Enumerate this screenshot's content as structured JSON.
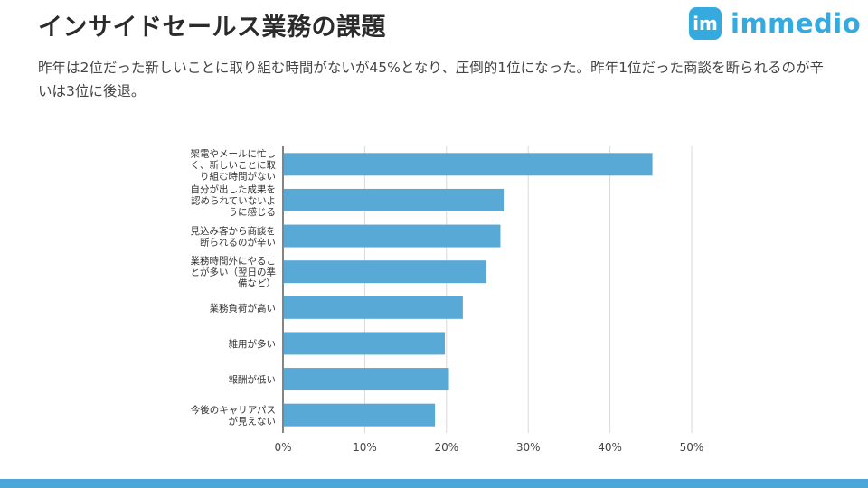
{
  "header": {
    "title": "インサイドセールス業務の課題",
    "subtitle": "昨年は2位だった新しいことに取り組む時間がないが45%となり、圧倒的1位になった。昨年1位だった商談を断られるのが辛いは3位に後退。"
  },
  "logo": {
    "icon_text": "im",
    "text": "immedio",
    "color": "#35aadf"
  },
  "chart_data": {
    "type": "bar",
    "orientation": "horizontal",
    "categories": [
      [
        "架電やメールに忙し",
        "く、新しいことに取",
        "り組む時間がない"
      ],
      [
        "自分が出した成果を",
        "認められていないよ",
        "うに感じる"
      ],
      [
        "見込み客から商談を",
        "断られるのが辛い"
      ],
      [
        "業務時間外にやるこ",
        "とが多い（翌日の準",
        "備など）"
      ],
      [
        "業務負荷が高い"
      ],
      [
        "雑用が多い"
      ],
      [
        "報酬が低い"
      ],
      [
        "今後のキャリアパス",
        "が見えない"
      ]
    ],
    "values": [
      45.2,
      27.0,
      26.6,
      24.9,
      22.0,
      19.8,
      20.3,
      18.6
    ],
    "xlim": [
      0,
      50
    ],
    "xticks": [
      0,
      10,
      20,
      30,
      40,
      50
    ],
    "xtick_labels": [
      "0%",
      "10%",
      "20%",
      "30%",
      "40%",
      "50%"
    ],
    "bar_color": "#58a9d6",
    "grid": true,
    "title": "",
    "xlabel": "",
    "ylabel": ""
  }
}
